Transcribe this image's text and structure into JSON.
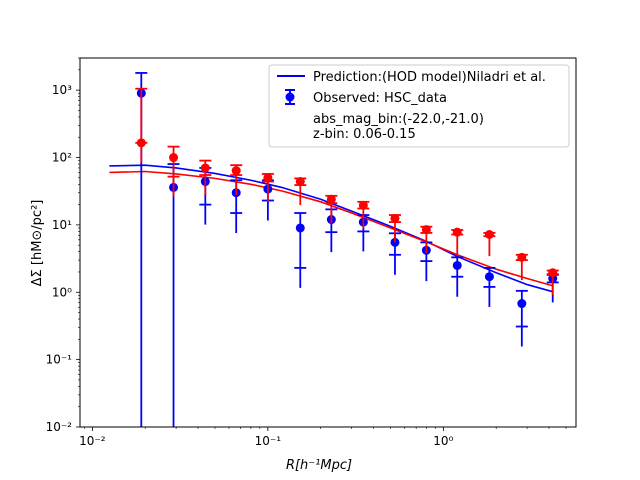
{
  "chart_data": {
    "type": "scatter",
    "xscale": "log",
    "yscale": "log",
    "xlim": [
      0.0085,
      5.7
    ],
    "ylim": [
      0.01,
      3000
    ],
    "xlabel": "R[h⁻¹Mpc]",
    "ylabel": "ΔΣ [hM⊙/pc²]",
    "x_ticks": [
      0.01,
      0.1,
      1
    ],
    "x_tick_labels": [
      "10⁻²",
      "10⁻¹",
      "10⁰"
    ],
    "y_ticks": [
      0.01,
      0.1,
      1,
      10,
      100,
      1000
    ],
    "y_tick_labels": [
      "10⁻²",
      "10⁻¹",
      "10⁰",
      "10¹",
      "10²",
      "10³"
    ],
    "grid": false,
    "legend": {
      "placement": "top-right",
      "entries": [
        {
          "label": "Prediction:(HOD model)Niladri et al.",
          "marker": "line",
          "color": "#0000ff"
        },
        {
          "label": "Observed: HSC_data",
          "marker": "errorbar",
          "color": "#0000ff"
        }
      ],
      "annotation_lines": [
        "abs_mag_bin:(-22.0,-21.0)",
        "z-bin: 0.06-0.15"
      ]
    },
    "series": [
      {
        "kind": "line",
        "color": "#0000ff",
        "x": [
          0.0125,
          0.02,
          0.03,
          0.05,
          0.08,
          0.12,
          0.2,
          0.3,
          0.5,
          0.8,
          1.2,
          2.0,
          3.0,
          4.2
        ],
        "y": [
          75,
          77,
          70,
          58,
          46,
          36,
          24,
          16,
          9.5,
          5.7,
          3.4,
          1.95,
          1.3,
          1.02
        ]
      },
      {
        "kind": "line",
        "color": "#ff0000",
        "x": [
          0.0125,
          0.02,
          0.03,
          0.05,
          0.08,
          0.12,
          0.2,
          0.3,
          0.5,
          0.8,
          1.2,
          2.0,
          3.0,
          4.2
        ],
        "y": [
          60,
          62,
          57,
          49,
          40,
          32,
          22,
          15,
          9.0,
          5.6,
          3.6,
          2.2,
          1.6,
          1.25
        ]
      },
      {
        "kind": "errorbar",
        "color": "#0000ff",
        "points": [
          {
            "x": 0.019,
            "y": 900,
            "ylo": 0.0001,
            "yhi": 1800
          },
          {
            "x": 0.029,
            "y": 36,
            "ylo": 0.0001,
            "yhi": 80
          },
          {
            "x": 0.044,
            "y": 44,
            "ylo": 20,
            "yhi": 70
          },
          {
            "x": 0.066,
            "y": 30,
            "ylo": 15,
            "yhi": 46
          },
          {
            "x": 0.1,
            "y": 34,
            "ylo": 23,
            "yhi": 46
          },
          {
            "x": 0.153,
            "y": 9,
            "ylo": 2.3,
            "yhi": 15
          },
          {
            "x": 0.23,
            "y": 12,
            "ylo": 7.8,
            "yhi": 17
          },
          {
            "x": 0.35,
            "y": 11,
            "ylo": 8,
            "yhi": 14
          },
          {
            "x": 0.53,
            "y": 5.5,
            "ylo": 3.6,
            "yhi": 7.5
          },
          {
            "x": 0.8,
            "y": 4.2,
            "ylo": 2.9,
            "yhi": 5.5
          },
          {
            "x": 1.2,
            "y": 2.5,
            "ylo": 1.7,
            "yhi": 3.3
          },
          {
            "x": 1.83,
            "y": 1.7,
            "ylo": 1.2,
            "yhi": 2.3
          },
          {
            "x": 2.8,
            "y": 0.68,
            "ylo": 0.31,
            "yhi": 1.05
          },
          {
            "x": 4.2,
            "y": 1.6,
            "ylo": 1.4,
            "yhi": 1.85
          }
        ]
      },
      {
        "kind": "errorbar",
        "color": "#ff0000",
        "points": [
          {
            "x": 0.019,
            "y": 165,
            "ylo": 165,
            "yhi": 1050
          },
          {
            "x": 0.029,
            "y": 100,
            "ylo": 52,
            "yhi": 145
          },
          {
            "x": 0.044,
            "y": 70,
            "ylo": 55,
            "yhi": 90
          },
          {
            "x": 0.066,
            "y": 64,
            "ylo": 55,
            "yhi": 77
          },
          {
            "x": 0.1,
            "y": 50,
            "ylo": 44,
            "yhi": 57
          },
          {
            "x": 0.153,
            "y": 44,
            "ylo": 39,
            "yhi": 49
          },
          {
            "x": 0.23,
            "y": 24,
            "ylo": 21,
            "yhi": 27
          },
          {
            "x": 0.35,
            "y": 19.5,
            "ylo": 17.5,
            "yhi": 22
          },
          {
            "x": 0.53,
            "y": 12.5,
            "ylo": 11,
            "yhi": 14
          },
          {
            "x": 0.8,
            "y": 8.5,
            "ylo": 7.6,
            "yhi": 9.4
          },
          {
            "x": 1.2,
            "y": 7.8,
            "ylo": 7.2,
            "yhi": 8.4
          },
          {
            "x": 1.83,
            "y": 7.2,
            "ylo": 6.8,
            "yhi": 7.6
          },
          {
            "x": 2.8,
            "y": 3.3,
            "ylo": 3.0,
            "yhi": 3.6
          },
          {
            "x": 4.2,
            "y": 1.95,
            "ylo": 1.8,
            "yhi": 2.1
          }
        ]
      }
    ]
  }
}
